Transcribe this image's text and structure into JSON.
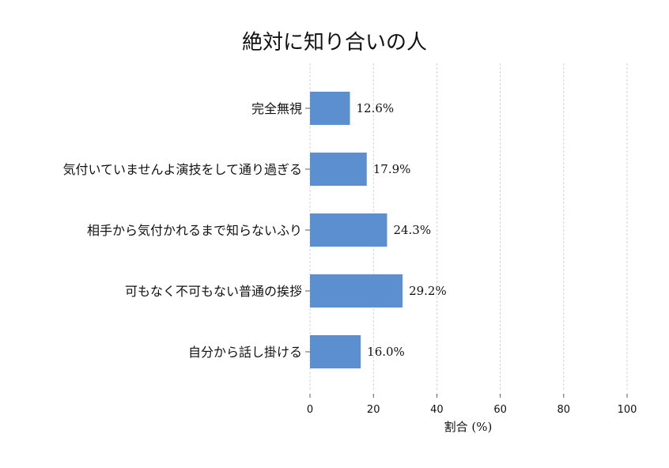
{
  "chart_data": {
    "type": "bar",
    "orientation": "horizontal",
    "title": "絶対に知り合いの人",
    "xlabel": "割合 (%)",
    "ylabel": "",
    "xlim": [
      0,
      100
    ],
    "xticks": [
      0,
      20,
      40,
      60,
      80,
      100
    ],
    "grid": true,
    "categories": [
      "完全無視",
      "気付いていませんよ演技をして通り過ぎる",
      "相手から気付かれるまで知らないふり",
      "可もなく不可もない普通の挨拶",
      "自分から話し掛ける"
    ],
    "values": [
      12.6,
      17.9,
      24.3,
      29.2,
      16.0
    ],
    "data_labels": [
      "12.6%",
      "17.9%",
      "24.3%",
      "29.2%",
      "16.0%"
    ],
    "bar_color": "#5b8fd0"
  }
}
